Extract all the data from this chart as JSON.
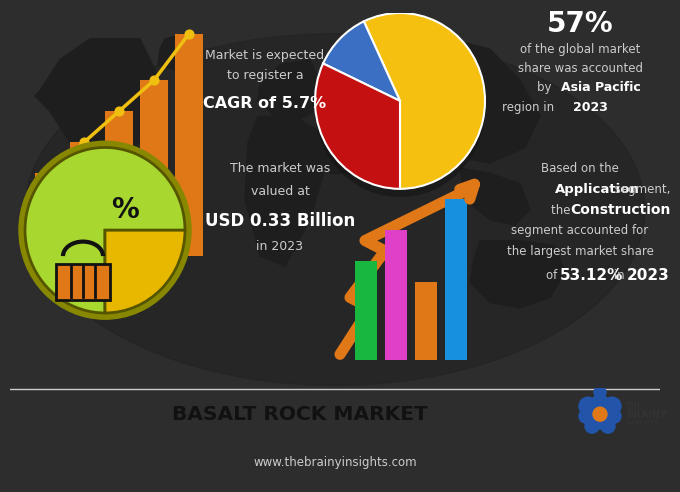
{
  "bg_top": "#2d2d2d",
  "bg_bottom": "#ffffff",
  "bg_footer": "#3a3a3a",
  "title": "BASALT ROCK MARKET",
  "website": "www.thebrainyinsights.com",
  "cagr_line1": "Market is expected",
  "cagr_line2": "to register a",
  "cagr_bold": "CAGR of 5.7%",
  "pie1_pct": "57%",
  "pie1_text1": "of the global market",
  "pie1_text2": "share was accounted",
  "pie1_text3a": "by ",
  "pie1_text3b": "Asia Pacific",
  "pie1_text4a": "region in ",
  "pie1_text4b": "2023",
  "market_text1": "The market was",
  "market_text2": "valued at",
  "market_bold": "USD 0.33 Billion",
  "market_text3": "in 2023",
  "app_text1": "Based on the",
  "app_bold1": "Application",
  "app_text1b": " segment,",
  "app_text2a": "the ",
  "app_bold2": "Construction",
  "app_text3": "segment accounted for",
  "app_text4": "the largest market share",
  "app_text5a": "of ",
  "app_bold5": "53.12%",
  "app_text5b": " in ",
  "app_bold5c": "2023",
  "pie1_colors": [
    "#f5c010",
    "#3a6fc4",
    "#c41010"
  ],
  "pie1_sizes": [
    57,
    11,
    32
  ],
  "pie2_colors": [
    "#a8d830",
    "#e8b800"
  ],
  "pie2_sizes": [
    75,
    25
  ],
  "bar_top_color": "#e07818",
  "bar_bottom_colors": [
    "#18b840",
    "#e040c8",
    "#e07818",
    "#1890e0"
  ],
  "arrow_color": "#e07818",
  "line_color": "#f0c010",
  "text_light": "#cccccc",
  "text_white": "#ffffff",
  "text_dark": "#222222"
}
